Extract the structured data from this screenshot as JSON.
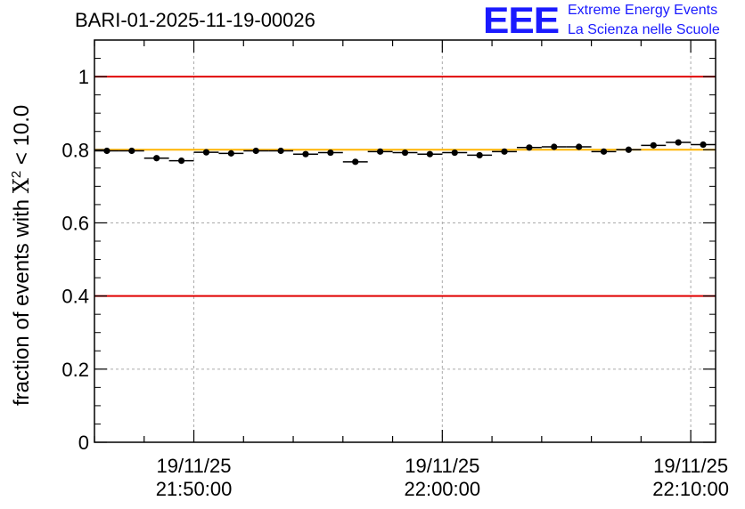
{
  "header": {
    "run_id": "BARI-01-2025-11-19-00026",
    "logo_text": "EEE",
    "logo_line1": "Extreme Energy Events",
    "logo_line2": "La Scienza nelle Scuole"
  },
  "colors": {
    "axis": "#000000",
    "grid": "#aaaaaa",
    "limit_line": "#e00000",
    "mean_line": "#ffb400",
    "logo": "#1a1aff",
    "marker": "#000000"
  },
  "chart_data": {
    "type": "scatter",
    "title": "BARI-01-2025-11-19-00026",
    "xlabel": "",
    "ylabel": "fraction of events with X² < 10.0",
    "ylabel_parts": {
      "prefix": "fraction of events with ",
      "symbol": "X",
      "superscript": "2",
      "suffix": " < 10.0"
    },
    "xlim_minutes": [
      0,
      25
    ],
    "ylim": [
      0,
      1.1
    ],
    "y_ticks": [
      {
        "value": 0,
        "label": "0"
      },
      {
        "value": 0.2,
        "label": "0.2"
      },
      {
        "value": 0.4,
        "label": "0.4"
      },
      {
        "value": 0.6,
        "label": "0.6"
      },
      {
        "value": 0.8,
        "label": "0.8"
      },
      {
        "value": 1.0,
        "label": "1"
      }
    ],
    "x_ticks": [
      {
        "value": 4,
        "date": "19/11/25",
        "time": "21:50:00"
      },
      {
        "value": 14,
        "date": "19/11/25",
        "time": "22:00:00"
      },
      {
        "value": 24,
        "date": "19/11/25",
        "time": "22:10:00"
      }
    ],
    "x_minor_step": 2,
    "grid": true,
    "reference_lines": [
      {
        "name": "upper-limit",
        "value": 1.0,
        "color": "#e00000"
      },
      {
        "name": "lower-limit",
        "value": 0.4,
        "color": "#e00000"
      },
      {
        "name": "mean",
        "value": 0.8,
        "color": "#ffb400"
      }
    ],
    "bin_width_minutes": 1,
    "series": [
      {
        "name": "fraction",
        "x": [
          0.5,
          1.5,
          2.5,
          3.5,
          4.5,
          5.5,
          6.5,
          7.5,
          8.5,
          9.5,
          10.5,
          11.5,
          12.5,
          13.5,
          14.5,
          15.5,
          16.5,
          17.5,
          18.5,
          19.5,
          20.5,
          21.5,
          22.5,
          23.5,
          24.5
        ],
        "values": [
          0.797,
          0.797,
          0.777,
          0.77,
          0.793,
          0.79,
          0.797,
          0.797,
          0.788,
          0.792,
          0.767,
          0.795,
          0.792,
          0.788,
          0.792,
          0.785,
          0.795,
          0.806,
          0.808,
          0.808,
          0.795,
          0.8,
          0.812,
          0.82,
          0.814
        ]
      }
    ]
  }
}
